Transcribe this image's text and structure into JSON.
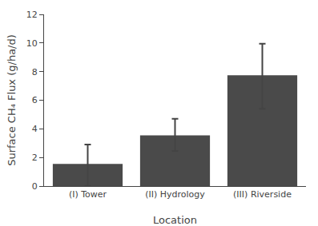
{
  "chart_data": {
    "type": "bar",
    "categories": [
      "(I) Tower",
      "(II) Hydrology",
      "(III) Riverside"
    ],
    "values": [
      1.55,
      3.55,
      7.75
    ],
    "error_upper": [
      1.35,
      1.15,
      2.2
    ],
    "error_lower": [
      1.55,
      1.1,
      2.35
    ],
    "color": "#4a4a4a",
    "xlabel": "Location",
    "ylabel": "Surface CH₄ Flux (g/ha/d)",
    "ylim": [
      0,
      12
    ],
    "yticks": [
      0,
      2,
      4,
      6,
      8,
      10,
      12
    ],
    "grid": false
  }
}
